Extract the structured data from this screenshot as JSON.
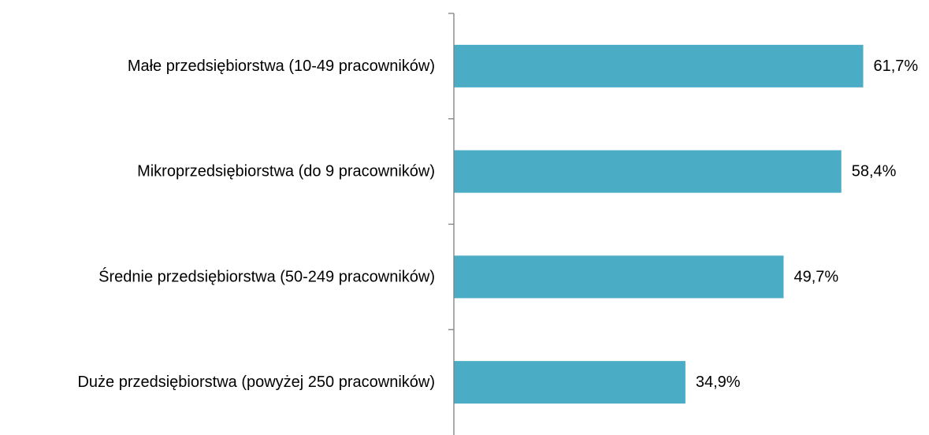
{
  "chart_data": {
    "type": "bar",
    "orientation": "horizontal",
    "categories": [
      "Małe przedsiębiorstwa (10-49 pracowników)",
      "Mikroprzedsiębiorstwa (do 9 pracowników)",
      "Średnie przedsiębiorstwa (50-249 pracowników)",
      "Duże przedsiębiorstwa (powyżej 250 pracowników)"
    ],
    "values": [
      61.7,
      58.4,
      49.7,
      34.9
    ],
    "value_labels": [
      "61,7%",
      "58,4%",
      "49,7%",
      "34,9%"
    ],
    "xlim": [
      0,
      100
    ],
    "grid": false,
    "legend": "none",
    "colors": {
      "bar": "#4BACC6",
      "axis": "#808080",
      "text": "#000000"
    }
  }
}
